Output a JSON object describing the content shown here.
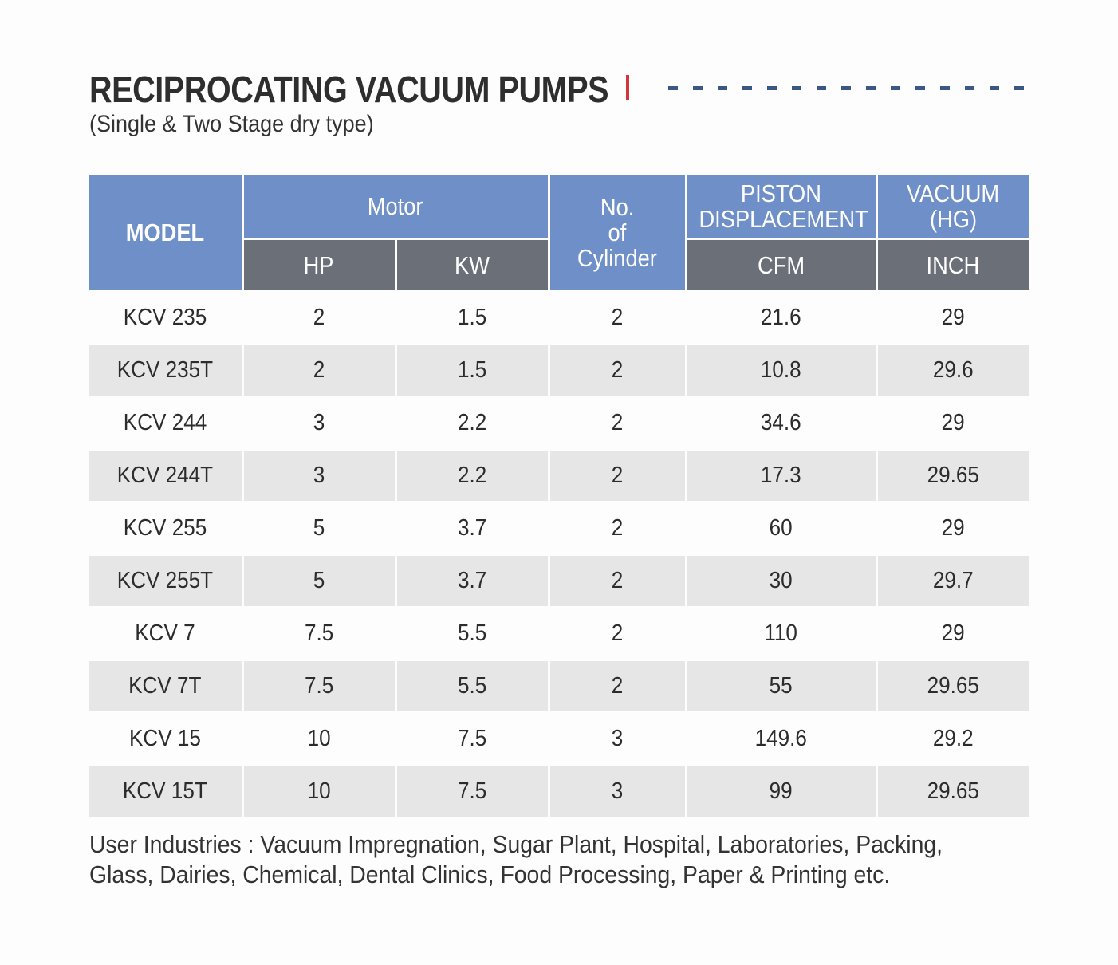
{
  "header": {
    "title": "RECIPROCATING VACUUM PUMPS",
    "subtitle": "(Single & Two Stage dry type)"
  },
  "table": {
    "col_model": "MODEL",
    "col_motor": "Motor",
    "col_hp": "HP",
    "col_kw": "KW",
    "col_cyl_1": "No.",
    "col_cyl_2": "of",
    "col_cyl_3": "Cylinder",
    "col_piston_1": "PISTON",
    "col_piston_2": "DISPLACEMENT",
    "col_cfm": "CFM",
    "col_vac_1": "VACUUM",
    "col_vac_2": "(HG)",
    "col_inch": "INCH",
    "rows": [
      [
        "KCV 235",
        "2",
        "1.5",
        "2",
        "21.6",
        "29"
      ],
      [
        "KCV 235T",
        "2",
        "1.5",
        "2",
        "10.8",
        "29.6"
      ],
      [
        "KCV 244",
        "3",
        "2.2",
        "2",
        "34.6",
        "29"
      ],
      [
        "KCV 244T",
        "3",
        "2.2",
        "2",
        "17.3",
        "29.65"
      ],
      [
        "KCV 255",
        "5",
        "3.7",
        "2",
        "60",
        "29"
      ],
      [
        "KCV 255T",
        "5",
        "3.7",
        "2",
        "30",
        "29.7"
      ],
      [
        "KCV 7",
        "7.5",
        "5.5",
        "2",
        "110",
        "29"
      ],
      [
        "KCV 7T",
        "7.5",
        "5.5",
        "2",
        "55",
        "29.65"
      ],
      [
        "KCV 15",
        "10",
        "7.5",
        "3",
        "149.6",
        "29.2"
      ],
      [
        "KCV 15T",
        "10",
        "7.5",
        "3",
        "99",
        "29.65"
      ]
    ]
  },
  "footer": {
    "line1": "User Industries : Vacuum Impregnation, Sugar Plant, Hospital, Laboratories, Packing,",
    "line2": "Glass, Dairies, Chemical, Dental Clinics, Food Processing, Paper & Printing etc."
  },
  "colors": {
    "header_blue": "#6f8fc8",
    "header_grey": "#6b6f78",
    "accent_red": "#d6343b",
    "dash_blue": "#3b5784",
    "row_alt": "#e6e6e6"
  }
}
